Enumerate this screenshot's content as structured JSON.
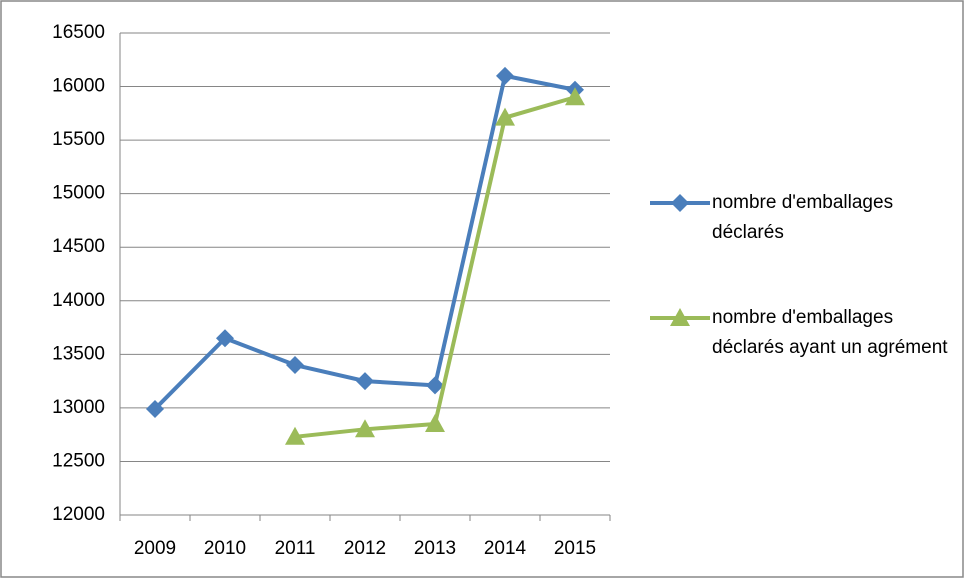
{
  "chart_data": {
    "type": "line",
    "categories": [
      "2009",
      "2010",
      "2011",
      "2012",
      "2013",
      "2014",
      "2015"
    ],
    "series": [
      {
        "name": "nombre d'emballages déclarés",
        "color": "#4a7ebb",
        "marker": "diamond",
        "values": [
          12990,
          13650,
          13400,
          13250,
          13210,
          16100,
          15970
        ]
      },
      {
        "name": "nombre d'emballages déclarés ayant un agrément",
        "color": "#9bbb59",
        "marker": "triangle",
        "values": [
          null,
          null,
          12730,
          12800,
          12850,
          15710,
          15900
        ]
      }
    ],
    "ylim": [
      12000,
      16500
    ],
    "yticks": [
      12000,
      12500,
      13000,
      13500,
      14000,
      14500,
      15000,
      15500,
      16000,
      16500
    ],
    "grid": true,
    "legend": "right"
  }
}
